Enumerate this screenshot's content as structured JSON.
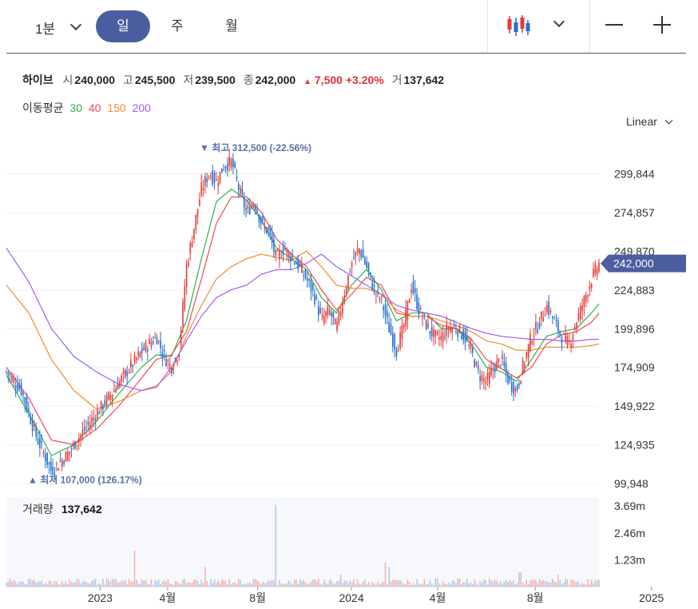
{
  "toolbar": {
    "interval": "1분",
    "periods": [
      "일",
      "주",
      "월"
    ],
    "active_period": "일",
    "chart_type_icon": "candlestick-icon",
    "zoom_out_icon": "minus-icon",
    "zoom_in_icon": "plus-icon"
  },
  "quote": {
    "name": "하이브",
    "open_label": "시",
    "open": "240,000",
    "high_label": "고",
    "high": "245,500",
    "low_label": "저",
    "low": "239,500",
    "close_label": "종",
    "close": "242,000",
    "change_arrow": "▲",
    "change": "7,500",
    "change_pct": "+3.20%",
    "volume_label": "거",
    "volume": "137,642"
  },
  "moving_average": {
    "label": "이동평균",
    "periods": [
      {
        "period": "30",
        "color": "#2bb24c"
      },
      {
        "period": "40",
        "color": "#f0485a"
      },
      {
        "period": "150",
        "color": "#f28a2e"
      },
      {
        "period": "200",
        "color": "#a25cf0"
      }
    ]
  },
  "scale_mode": "Linear",
  "colors": {
    "up": "#e53935",
    "down": "#1e6fd0",
    "accent": "#4a5ea0",
    "annotation": "#5a6fa8"
  },
  "chart_data": {
    "type": "candlestick",
    "y_ticks": [
      "299,844",
      "274,857",
      "249,870",
      "224,883",
      "199,896",
      "174,909",
      "149,922",
      "124,935",
      "99,948"
    ],
    "ylim": [
      99948,
      312500
    ],
    "x_ticks": [
      "2023",
      "4월",
      "8월",
      "2024",
      "4월",
      "8월",
      "2025"
    ],
    "last_price_label": "242,000",
    "last_price": 242000,
    "high_annotation": {
      "text": "▼ 최고 312,500 (-22.56%)",
      "value": 312500
    },
    "low_annotation": {
      "text": "▲ 최저 107,000 (126.17%)",
      "value": 107000
    },
    "price_path": [
      [
        0,
        172000
      ],
      [
        4,
        160000
      ],
      [
        8,
        130000
      ],
      [
        12,
        108000
      ],
      [
        16,
        118000
      ],
      [
        20,
        132000
      ],
      [
        24,
        145000
      ],
      [
        28,
        158000
      ],
      [
        32,
        172000
      ],
      [
        36,
        185000
      ],
      [
        40,
        195000
      ],
      [
        42,
        182000
      ],
      [
        44,
        175000
      ],
      [
        46,
        185000
      ],
      [
        48,
        240000
      ],
      [
        50,
        265000
      ],
      [
        52,
        290000
      ],
      [
        54,
        300000
      ],
      [
        56,
        295000
      ],
      [
        58,
        305000
      ],
      [
        60,
        308000
      ],
      [
        62,
        290000
      ],
      [
        64,
        275000
      ],
      [
        66,
        282000
      ],
      [
        68,
        268000
      ],
      [
        70,
        262000
      ],
      [
        72,
        245000
      ],
      [
        74,
        252000
      ],
      [
        76,
        246000
      ],
      [
        78,
        240000
      ],
      [
        80,
        232000
      ],
      [
        82,
        222000
      ],
      [
        84,
        205000
      ],
      [
        86,
        212000
      ],
      [
        88,
        200000
      ],
      [
        90,
        222000
      ],
      [
        92,
        242000
      ],
      [
        94,
        252000
      ],
      [
        96,
        240000
      ],
      [
        98,
        225000
      ],
      [
        100,
        218000
      ],
      [
        102,
        200000
      ],
      [
        104,
        186000
      ],
      [
        106,
        202000
      ],
      [
        108,
        228000
      ],
      [
        110,
        212000
      ],
      [
        112,
        202000
      ],
      [
        114,
        195000
      ],
      [
        116,
        194000
      ],
      [
        118,
        201000
      ],
      [
        120,
        200000
      ],
      [
        122,
        195000
      ],
      [
        124,
        185000
      ],
      [
        126,
        170000
      ],
      [
        128,
        166000
      ],
      [
        130,
        175000
      ],
      [
        132,
        180000
      ],
      [
        134,
        165000
      ],
      [
        136,
        160000
      ],
      [
        138,
        178000
      ],
      [
        140,
        195000
      ],
      [
        142,
        203000
      ],
      [
        144,
        215000
      ],
      [
        146,
        205000
      ],
      [
        148,
        195000
      ],
      [
        150,
        190000
      ],
      [
        152,
        205000
      ],
      [
        154,
        218000
      ],
      [
        156,
        232000
      ],
      [
        158,
        242000
      ]
    ],
    "ma": [
      {
        "period": "30",
        "color": "#2bb24c",
        "path": [
          [
            0,
            170000
          ],
          [
            6,
            145000
          ],
          [
            12,
            118000
          ],
          [
            18,
            125000
          ],
          [
            24,
            140000
          ],
          [
            30,
            158000
          ],
          [
            36,
            175000
          ],
          [
            40,
            183000
          ],
          [
            44,
            182000
          ],
          [
            48,
            205000
          ],
          [
            52,
            245000
          ],
          [
            56,
            282000
          ],
          [
            60,
            290000
          ],
          [
            64,
            283000
          ],
          [
            68,
            270000
          ],
          [
            72,
            252000
          ],
          [
            76,
            245000
          ],
          [
            80,
            238000
          ],
          [
            84,
            220000
          ],
          [
            88,
            210000
          ],
          [
            92,
            228000
          ],
          [
            96,
            238000
          ],
          [
            100,
            225000
          ],
          [
            104,
            205000
          ],
          [
            108,
            210000
          ],
          [
            112,
            210000
          ],
          [
            116,
            200000
          ],
          [
            120,
            200000
          ],
          [
            124,
            190000
          ],
          [
            128,
            175000
          ],
          [
            132,
            172000
          ],
          [
            136,
            166000
          ],
          [
            140,
            180000
          ],
          [
            144,
            195000
          ],
          [
            148,
            198000
          ],
          [
            152,
            200000
          ],
          [
            156,
            210000
          ],
          [
            158,
            216000
          ]
        ]
      },
      {
        "period": "40",
        "color": "#f0485a",
        "path": [
          [
            0,
            175000
          ],
          [
            6,
            155000
          ],
          [
            12,
            128000
          ],
          [
            18,
            125000
          ],
          [
            24,
            135000
          ],
          [
            30,
            150000
          ],
          [
            36,
            168000
          ],
          [
            40,
            180000
          ],
          [
            44,
            183000
          ],
          [
            48,
            198000
          ],
          [
            52,
            232000
          ],
          [
            56,
            268000
          ],
          [
            60,
            285000
          ],
          [
            64,
            285000
          ],
          [
            68,
            275000
          ],
          [
            72,
            258000
          ],
          [
            76,
            248000
          ],
          [
            80,
            240000
          ],
          [
            84,
            225000
          ],
          [
            88,
            212000
          ],
          [
            92,
            222000
          ],
          [
            96,
            233000
          ],
          [
            100,
            228000
          ],
          [
            104,
            210000
          ],
          [
            108,
            208000
          ],
          [
            112,
            208000
          ],
          [
            116,
            202000
          ],
          [
            120,
            200000
          ],
          [
            124,
            193000
          ],
          [
            128,
            180000
          ],
          [
            132,
            174000
          ],
          [
            136,
            168000
          ],
          [
            140,
            175000
          ],
          [
            144,
            190000
          ],
          [
            148,
            196000
          ],
          [
            152,
            198000
          ],
          [
            156,
            204000
          ],
          [
            158,
            210000
          ]
        ]
      },
      {
        "period": "150",
        "color": "#f28a2e",
        "path": [
          [
            0,
            228000
          ],
          [
            6,
            210000
          ],
          [
            12,
            180000
          ],
          [
            18,
            160000
          ],
          [
            24,
            148000
          ],
          [
            30,
            153000
          ],
          [
            36,
            160000
          ],
          [
            40,
            163000
          ],
          [
            44,
            172000
          ],
          [
            48,
            195000
          ],
          [
            52,
            215000
          ],
          [
            56,
            232000
          ],
          [
            60,
            240000
          ],
          [
            64,
            245000
          ],
          [
            68,
            248000
          ],
          [
            72,
            246000
          ],
          [
            76,
            244000
          ],
          [
            80,
            250000
          ],
          [
            84,
            240000
          ],
          [
            88,
            228000
          ],
          [
            92,
            226000
          ],
          [
            96,
            226000
          ],
          [
            100,
            222000
          ],
          [
            104,
            212000
          ],
          [
            108,
            208000
          ],
          [
            112,
            208000
          ],
          [
            116,
            205000
          ],
          [
            120,
            202000
          ],
          [
            124,
            198000
          ],
          [
            128,
            192000
          ],
          [
            132,
            190000
          ],
          [
            136,
            186000
          ],
          [
            140,
            186000
          ],
          [
            144,
            188000
          ],
          [
            148,
            188000
          ],
          [
            152,
            188000
          ],
          [
            156,
            189000
          ],
          [
            158,
            190000
          ]
        ]
      },
      {
        "period": "200",
        "color": "#a25cf0",
        "path": [
          [
            0,
            252000
          ],
          [
            6,
            230000
          ],
          [
            12,
            200000
          ],
          [
            18,
            182000
          ],
          [
            24,
            172000
          ],
          [
            30,
            164000
          ],
          [
            36,
            160000
          ],
          [
            40,
            162000
          ],
          [
            44,
            175000
          ],
          [
            48,
            192000
          ],
          [
            52,
            208000
          ],
          [
            56,
            220000
          ],
          [
            60,
            225000
          ],
          [
            64,
            228000
          ],
          [
            68,
            235000
          ],
          [
            72,
            238000
          ],
          [
            76,
            238000
          ],
          [
            80,
            242000
          ],
          [
            84,
            248000
          ],
          [
            88,
            240000
          ],
          [
            92,
            234000
          ],
          [
            96,
            228000
          ],
          [
            100,
            222000
          ],
          [
            104,
            215000
          ],
          [
            108,
            212000
          ],
          [
            112,
            210000
          ],
          [
            116,
            208000
          ],
          [
            120,
            204000
          ],
          [
            124,
            200000
          ],
          [
            128,
            197000
          ],
          [
            132,
            195000
          ],
          [
            136,
            194000
          ],
          [
            140,
            193000
          ],
          [
            144,
            193000
          ],
          [
            148,
            192000
          ],
          [
            152,
            192000
          ],
          [
            156,
            193000
          ],
          [
            158,
            193000
          ]
        ]
      }
    ],
    "volume": {
      "label": "거래량",
      "value": "137,642",
      "y_ticks": [
        "3.69m",
        "2.46m",
        "1.23m"
      ],
      "ylim": [
        0,
        4100000
      ],
      "spikes": [
        [
          34,
          1650000
        ],
        [
          53,
          900000
        ],
        [
          72,
          3750000
        ],
        [
          89,
          550000
        ],
        [
          101,
          1100000
        ],
        [
          102,
          900000
        ],
        [
          137,
          650000
        ],
        [
          147,
          550000
        ]
      ],
      "baseline": 250000
    }
  }
}
